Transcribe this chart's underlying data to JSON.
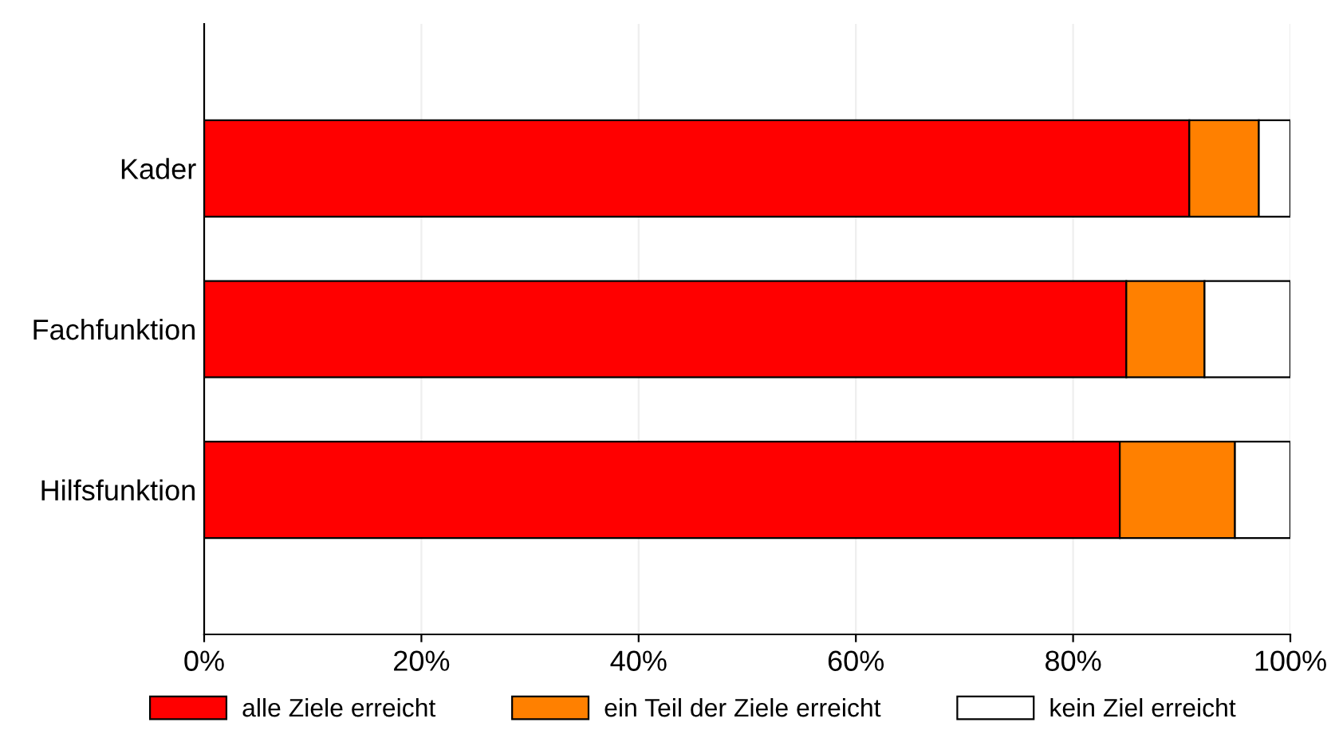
{
  "chart_data": {
    "type": "bar",
    "orientation": "horizontal",
    "stacked": true,
    "categories": [
      "Kader",
      "Fachfunktion",
      "Hilfsfunktion"
    ],
    "series": [
      {
        "name": "alle Ziele erreicht",
        "color": "#ff0000",
        "values": [
          90.7,
          84.9,
          84.3
        ]
      },
      {
        "name": "ein Teil der Ziele erreicht",
        "color": "#ff8000",
        "values": [
          6.4,
          7.2,
          10.6
        ]
      },
      {
        "name": "kein Ziel erreicht",
        "color": "#ffffff",
        "values": [
          2.9,
          7.9,
          5.1
        ]
      }
    ],
    "xlim": [
      0,
      100
    ],
    "xticks": [
      {
        "value": 0,
        "label": "0%"
      },
      {
        "value": 20,
        "label": "20%"
      },
      {
        "value": 40,
        "label": "40%"
      },
      {
        "value": 60,
        "label": "60%"
      },
      {
        "value": 80,
        "label": "80%"
      },
      {
        "value": 100,
        "label": "100%"
      }
    ],
    "grid": "x",
    "legend": "bottom"
  }
}
